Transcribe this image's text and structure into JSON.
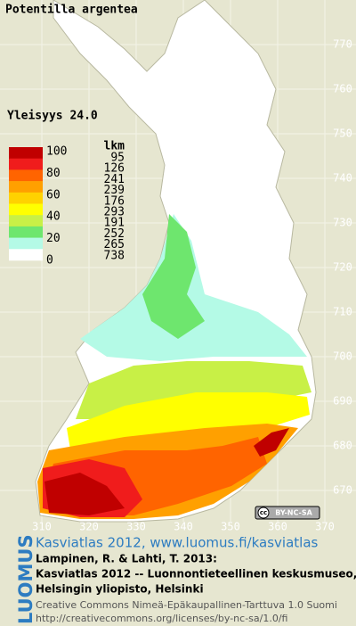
{
  "title": "Potentilla argentea",
  "frequency": "Yleisyys  24.0",
  "legend": {
    "heading": "lkm",
    "scale": [
      100,
      80,
      60,
      40,
      20,
      0
    ],
    "classes": [
      {
        "color": "#c00000",
        "count": 95
      },
      {
        "color": "#f01c1c",
        "count": 126
      },
      {
        "color": "#ff6400",
        "count": 241
      },
      {
        "color": "#ffa000",
        "count": 239
      },
      {
        "color": "#ffd200",
        "count": 176
      },
      {
        "color": "#ffff00",
        "count": 293
      },
      {
        "color": "#c8f046",
        "count": 191
      },
      {
        "color": "#6ee66e",
        "count": 252
      },
      {
        "color": "#b4fae6",
        "count": 265
      },
      {
        "color": "#ffffff",
        "count": 738
      }
    ]
  },
  "map": {
    "xticks": [
      310,
      320,
      330,
      340,
      350,
      360,
      370
    ],
    "yticks": [
      670,
      680,
      690,
      700,
      710,
      720,
      730,
      740,
      750,
      760,
      770
    ]
  },
  "badge": {
    "cc": "cc",
    "license": "BY-NC-SA"
  },
  "footer": {
    "logo": "LUOMUS",
    "link": "Kasviatlas 2012, www.luomus.fi/kasviatlas",
    "citation": [
      "Lampinen, R. & Lahti, T. 2013:",
      "Kasviatlas 2012 -- Luonnontieteellinen keskusmuseo,",
      "Helsingin yliopisto, Helsinki"
    ],
    "license": [
      "Creative Commons Nimeä-Epäkaupallinen-Tarttuva 1.0 Suomi",
      "http://creativecommons.org/licenses/by-nc-sa/1.0/fi"
    ]
  }
}
